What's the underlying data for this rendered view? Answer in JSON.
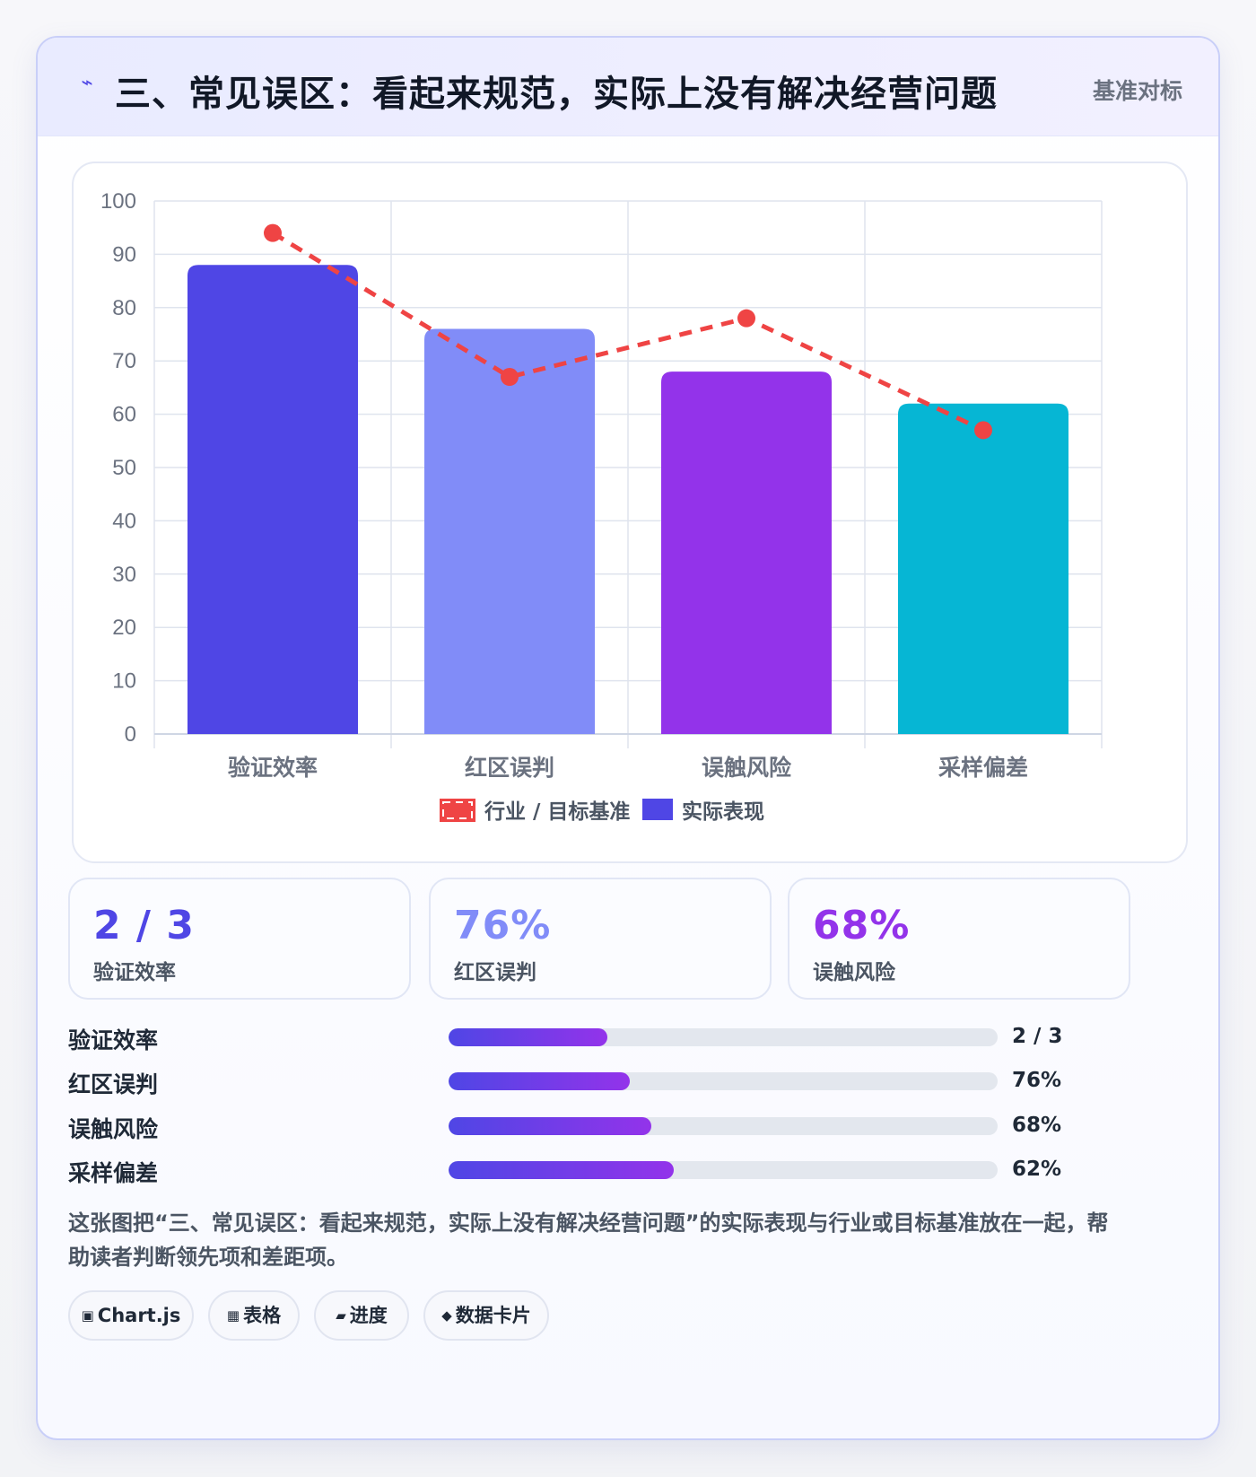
{
  "header": {
    "icon": "lightning-icon",
    "title": "三、常见误区：看起来规范，实际上没有解决经营问题",
    "tag": "基准对标"
  },
  "colors": {
    "bar1": "#4f46e5",
    "bar2": "#818cf8",
    "bar3": "#9333ea",
    "bar4": "#06b6d4",
    "benchmark": "#ef4444",
    "grid": "#dfe4ee"
  },
  "chart_data": {
    "type": "bar",
    "categories": [
      "验证效率",
      "红区误判",
      "误触风险",
      "采样偏差"
    ],
    "series": [
      {
        "name": "实际表现",
        "type": "bar",
        "values": [
          88,
          76,
          68,
          62
        ]
      },
      {
        "name": "行业 / 目标基准",
        "type": "line",
        "style": "dashed",
        "values": [
          94,
          67,
          78,
          57
        ]
      }
    ],
    "ylim": [
      0,
      100
    ],
    "yticks": [
      0,
      10,
      20,
      30,
      40,
      50,
      60,
      70,
      80,
      90,
      100
    ],
    "grid": true,
    "legend_position": "bottom",
    "legend": [
      "行业 / 目标基准",
      "实际表现"
    ]
  },
  "stats": [
    {
      "value": "2 / 3",
      "label": "验证效率",
      "color": "#4f46e5"
    },
    {
      "value": "76%",
      "label": "红区误判",
      "color": "#818cf8"
    },
    {
      "value": "68%",
      "label": "误触风险",
      "color": "#9333ea"
    }
  ],
  "progress": [
    {
      "label": "验证效率",
      "value": "2 / 3",
      "fill": 0.29
    },
    {
      "label": "红区误判",
      "value": "76%",
      "fill": 0.33
    },
    {
      "label": "误触风险",
      "value": "68%",
      "fill": 0.37
    },
    {
      "label": "采样偏差",
      "value": "62%",
      "fill": 0.41
    }
  ],
  "description": "这张图把“三、常见误区：看起来规范，实际上没有解决经营问题”的实际表现与行业或目标基准放在一起，帮助读者判断领先项和差距项。",
  "chips": [
    {
      "icon": "▣",
      "label": "Chart.js"
    },
    {
      "icon": "▦",
      "label": "表格"
    },
    {
      "icon": "▰",
      "label": "进度"
    },
    {
      "icon": "◆",
      "label": "数据卡片"
    }
  ]
}
